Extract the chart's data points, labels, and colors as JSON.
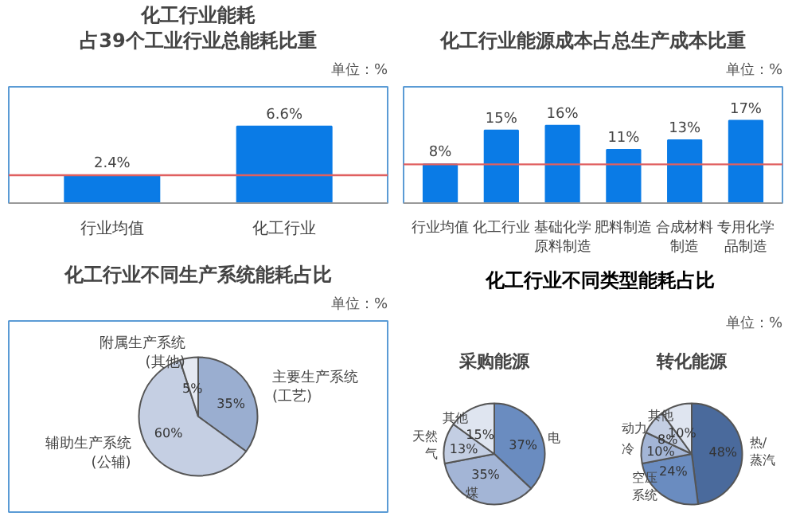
{
  "chart_data": [
    {
      "type": "bar",
      "title": "化工行业能耗",
      "subtitle": "占39个工业行业总能耗比重",
      "annotations": [
        "单位：%"
      ],
      "categories": [
        "行业均值",
        "化工行业"
      ],
      "values": [
        2.4,
        6.6
      ],
      "color": "#0a7be6",
      "value_labels": [
        "2.4%",
        "6.6%"
      ],
      "ylim": [
        0,
        10
      ],
      "tick_labels": "x",
      "grid": false,
      "ref_lines": [
        {
          "axis": "y",
          "value": 2.4,
          "color": "#e06060"
        }
      ]
    },
    {
      "type": "bar",
      "title": "化工行业能源成本占总生产成本比重",
      "annotations": [
        "单位：%"
      ],
      "categories": [
        "行业均值",
        "化工行业",
        "基础化学原料制造",
        "肥料制造",
        "合成材料制造",
        "专用化学品制造"
      ],
      "values": [
        8,
        15,
        16,
        11,
        13,
        17
      ],
      "color": "#0a7be6",
      "value_labels": [
        "8%",
        "15%",
        "16%",
        "11%",
        "13%",
        "17%"
      ],
      "ylim": [
        0,
        24
      ],
      "tick_labels": "x",
      "grid": false,
      "ref_lines": [
        {
          "axis": "y",
          "value": 8,
          "color": "#e06060"
        }
      ]
    },
    {
      "type": "pie",
      "title": "化工行业不同生产系统能耗占比",
      "annotations": [
        "单位：%"
      ],
      "categories": [
        "主要生产系统(工艺)",
        "辅助生产系统(公辅)",
        "附属生产系统(其他)"
      ],
      "values": [
        35,
        60,
        5
      ],
      "colors": [
        "#9aaed0",
        "#c5cfe3",
        "#e5e9f2"
      ],
      "value_labels": [
        "35%",
        "60%",
        "5%"
      ]
    },
    {
      "type": "pie",
      "title": "化工行业不同类型能耗占比",
      "subtitle": "采购能源",
      "annotations": [
        "单位：%"
      ],
      "categories": [
        "电",
        "煤",
        "天然气",
        "其他"
      ],
      "values": [
        37,
        35,
        13,
        15
      ],
      "colors": [
        "#6a8cc0",
        "#a3b5d6",
        "#c3cee3",
        "#dfe5f0"
      ],
      "value_labels": [
        "37%",
        "35%",
        "13%",
        "15%"
      ]
    },
    {
      "type": "pie",
      "title": "转化能源",
      "categories": [
        "热/蒸汽",
        "空压系统",
        "冷",
        "动力",
        "其他"
      ],
      "values": [
        48,
        24,
        10,
        8,
        10
      ],
      "colors": [
        "#4a6a9c",
        "#6a8cc0",
        "#a3b5d6",
        "#c3cee3",
        "#dfe5f0"
      ],
      "value_labels": [
        "48%",
        "24%",
        "10%",
        "8%",
        "10%"
      ]
    }
  ]
}
